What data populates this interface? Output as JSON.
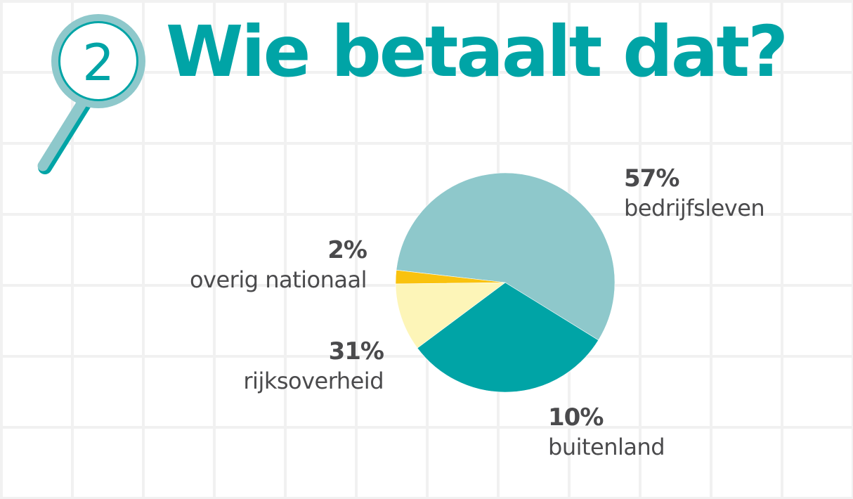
{
  "header": {
    "step_number": "2",
    "title": "Wie betaalt dat?"
  },
  "colors": {
    "accent": "#00a4a6",
    "light_teal": "#8ec8cb",
    "gold": "#f9c20e",
    "pale_yellow": "#fdf5b8",
    "text": "#4a4a4c",
    "grid": "#f1f1f1"
  },
  "labels": {
    "bedrijfsleven": {
      "pct": "57%",
      "name": "bedrijfsleven"
    },
    "overig": {
      "pct": "2%",
      "name": "overig nationaal"
    },
    "rijk": {
      "pct": "31%",
      "name": "rijksoverheid"
    },
    "buitenland": {
      "pct": "10%",
      "name": "buitenland"
    }
  },
  "chart_data": {
    "type": "pie",
    "title": "Wie betaalt dat?",
    "categories": [
      "bedrijfsleven",
      "rijksoverheid",
      "buitenland",
      "overig nationaal"
    ],
    "values": [
      57,
      31,
      10,
      2
    ],
    "unit": "%",
    "colors": [
      "#8ec8cb",
      "#00a4a6",
      "#fdf5b8",
      "#f9c20e"
    ],
    "legend": "direct labels around pie",
    "grid": false
  }
}
